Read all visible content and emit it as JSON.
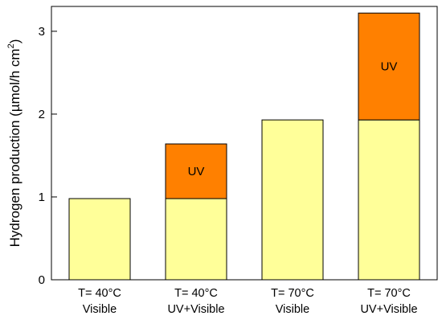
{
  "chart_data": {
    "type": "bar",
    "stacked": true,
    "categories": [
      [
        "T= 40°C",
        "Visible"
      ],
      [
        "T= 40°C",
        "UV+Visible"
      ],
      [
        "T= 70°C",
        "Visible"
      ],
      [
        "T= 70°C",
        "UV+Visible"
      ]
    ],
    "series": [
      {
        "values": [
          0.98,
          0.98,
          1.93,
          1.93
        ],
        "color": "#FFFF99"
      },
      {
        "values": [
          0,
          0.66,
          0,
          1.29
        ],
        "color": "#FF8000",
        "segment_label": "UV"
      }
    ],
    "ylabel": {
      "text": "Hydrogen production (µmol/h cm",
      "sup": "2",
      "close": ")"
    },
    "yticks": [
      0,
      1,
      2,
      3
    ],
    "ylim": [
      0,
      3.3
    ],
    "grid": false,
    "legend": "none"
  }
}
